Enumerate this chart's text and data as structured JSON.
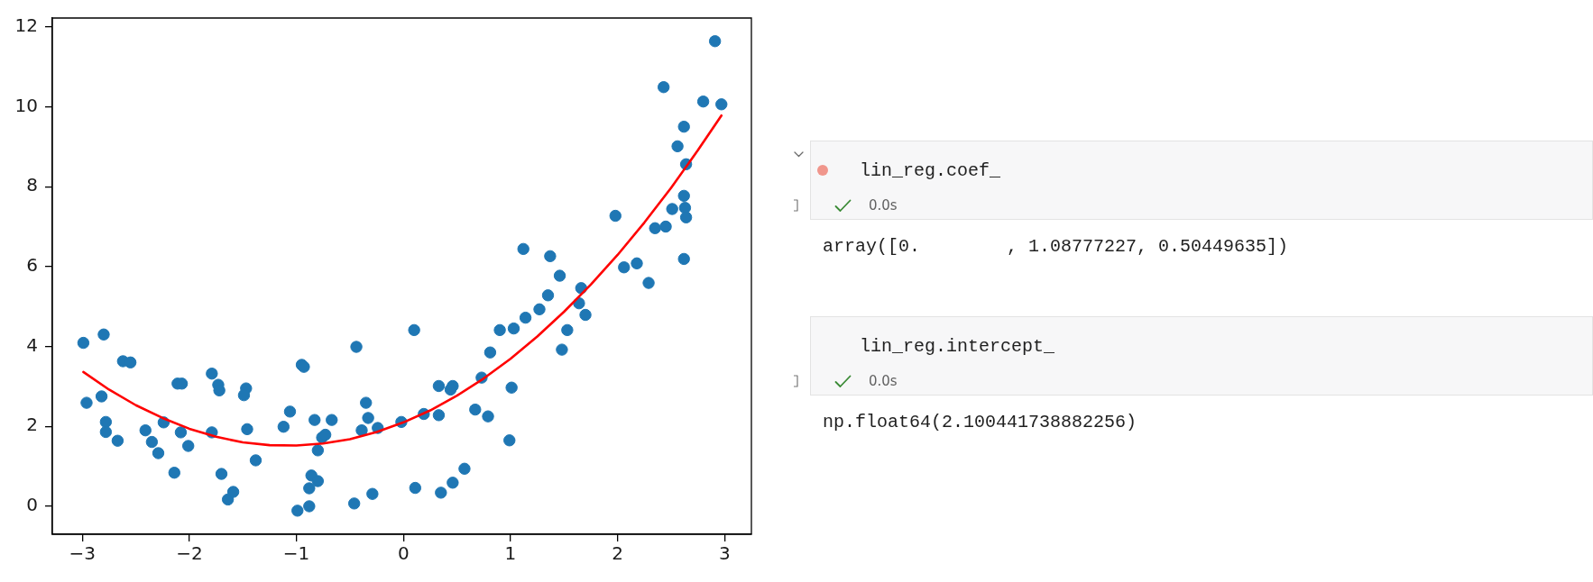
{
  "chart_data": [
    {
      "type": "scatter",
      "xlim": [
        -3.28,
        3.25
      ],
      "ylim": [
        -0.7,
        12.22
      ],
      "xticks": [
        {
          "value": -3,
          "label": "−3"
        },
        {
          "value": -2,
          "label": "−2"
        },
        {
          "value": -1,
          "label": "−1"
        },
        0,
        1,
        2,
        3
      ],
      "yticks": [
        0,
        2,
        4,
        6,
        8,
        10,
        12
      ],
      "series": [
        {
          "type": "scatter",
          "color": "#1f77b4",
          "marker": "circle",
          "x": [
            -2.99,
            -2.8,
            -2.96,
            -2.82,
            -2.78,
            -2.78,
            -2.67,
            -2.62,
            -2.55,
            -2.41,
            -2.35,
            -2.29,
            -2.24,
            -2.14,
            -2.11,
            -2.07,
            -2.08,
            -2.01,
            -1.79,
            -1.73,
            -1.72,
            -1.79,
            -1.7,
            -1.64,
            -1.59,
            -1.47,
            -1.49,
            -1.46,
            -1.38,
            -1.12,
            -1.06,
            -0.95,
            -0.93,
            -0.99,
            -0.88,
            -0.88,
            -0.86,
            -0.8,
            -0.83,
            -0.8,
            -0.76,
            -0.73,
            -0.67,
            -0.44,
            -0.46,
            -0.35,
            -0.33,
            -0.39,
            -0.29,
            -0.24,
            -0.02,
            0.1,
            0.11,
            0.19,
            0.33,
            0.33,
            0.35,
            0.46,
            0.44,
            0.46,
            0.57,
            0.67,
            0.73,
            0.79,
            0.81,
            0.9,
            0.99,
            1.01,
            1.03,
            1.14,
            1.27,
            1.35,
            1.48,
            1.53,
            1.64,
            1.7,
            2.91,
            2.43,
            2.8,
            2.97,
            2.62,
            2.56,
            2.64,
            2.62,
            2.51,
            2.63,
            2.64,
            2.35,
            2.45,
            1.98,
            1.12,
            1.37,
            1.46,
            2.06,
            2.18,
            2.29,
            2.62,
            1.66
          ],
          "values": [
            4.09,
            4.3,
            2.59,
            2.75,
            2.11,
            1.86,
            1.64,
            3.63,
            3.6,
            1.9,
            1.61,
            1.33,
            2.1,
            0.84,
            3.07,
            3.07,
            1.85,
            1.51,
            3.32,
            3.04,
            2.9,
            1.85,
            0.81,
            0.17,
            0.36,
            2.95,
            2.78,
            1.93,
            1.15,
            1.99,
            2.37,
            3.54,
            3.49,
            -0.11,
            0.0,
            0.45,
            0.77,
            0.63,
            2.16,
            1.4,
            1.72,
            1.79,
            2.16,
            3.99,
            0.07,
            2.59,
            2.21,
            1.9,
            0.31,
            1.96,
            2.11,
            4.41,
            0.46,
            2.31,
            3.01,
            2.28,
            0.34,
            3.01,
            2.92,
            0.59,
            0.94,
            2.42,
            3.22,
            2.25,
            3.85,
            4.41,
            1.65,
            2.97,
            4.45,
            4.72,
            4.93,
            5.28,
            3.92,
            4.41,
            5.08,
            4.79,
            11.64,
            10.49,
            10.13,
            10.06,
            9.5,
            9.01,
            8.56,
            7.77,
            7.44,
            7.47,
            7.23,
            6.96,
            7.0,
            7.27,
            6.44,
            6.26,
            5.77,
            5.98,
            6.08,
            5.59,
            6.19,
            5.46
          ]
        },
        {
          "type": "line",
          "color": "#ff0000",
          "x": [
            -2.99,
            -2.75,
            -2.5,
            -2.25,
            -2,
            -1.75,
            -1.5,
            -1.25,
            -1,
            -0.75,
            -0.5,
            -0.25,
            0,
            0.25,
            0.5,
            0.75,
            1,
            1.25,
            1.5,
            1.75,
            2,
            2.25,
            2.5,
            2.75,
            2.97
          ],
          "values": [
            3.36,
            2.92,
            2.53,
            2.21,
            1.94,
            1.74,
            1.6,
            1.53,
            1.52,
            1.57,
            1.68,
            1.86,
            2.1,
            2.4,
            2.77,
            3.2,
            3.69,
            4.25,
            4.87,
            5.55,
            6.29,
            7.1,
            7.97,
            8.91,
            9.78
          ]
        }
      ]
    },
    {
      "type": "other",
      "annotations": [
        "lin_reg.coef_",
        "0.0s",
        "array([0.        , 1.08777227, 0.50449635])",
        "lin_reg.intercept_",
        "0.0s",
        "np.float64(2.100441738882256)"
      ]
    }
  ]
}
